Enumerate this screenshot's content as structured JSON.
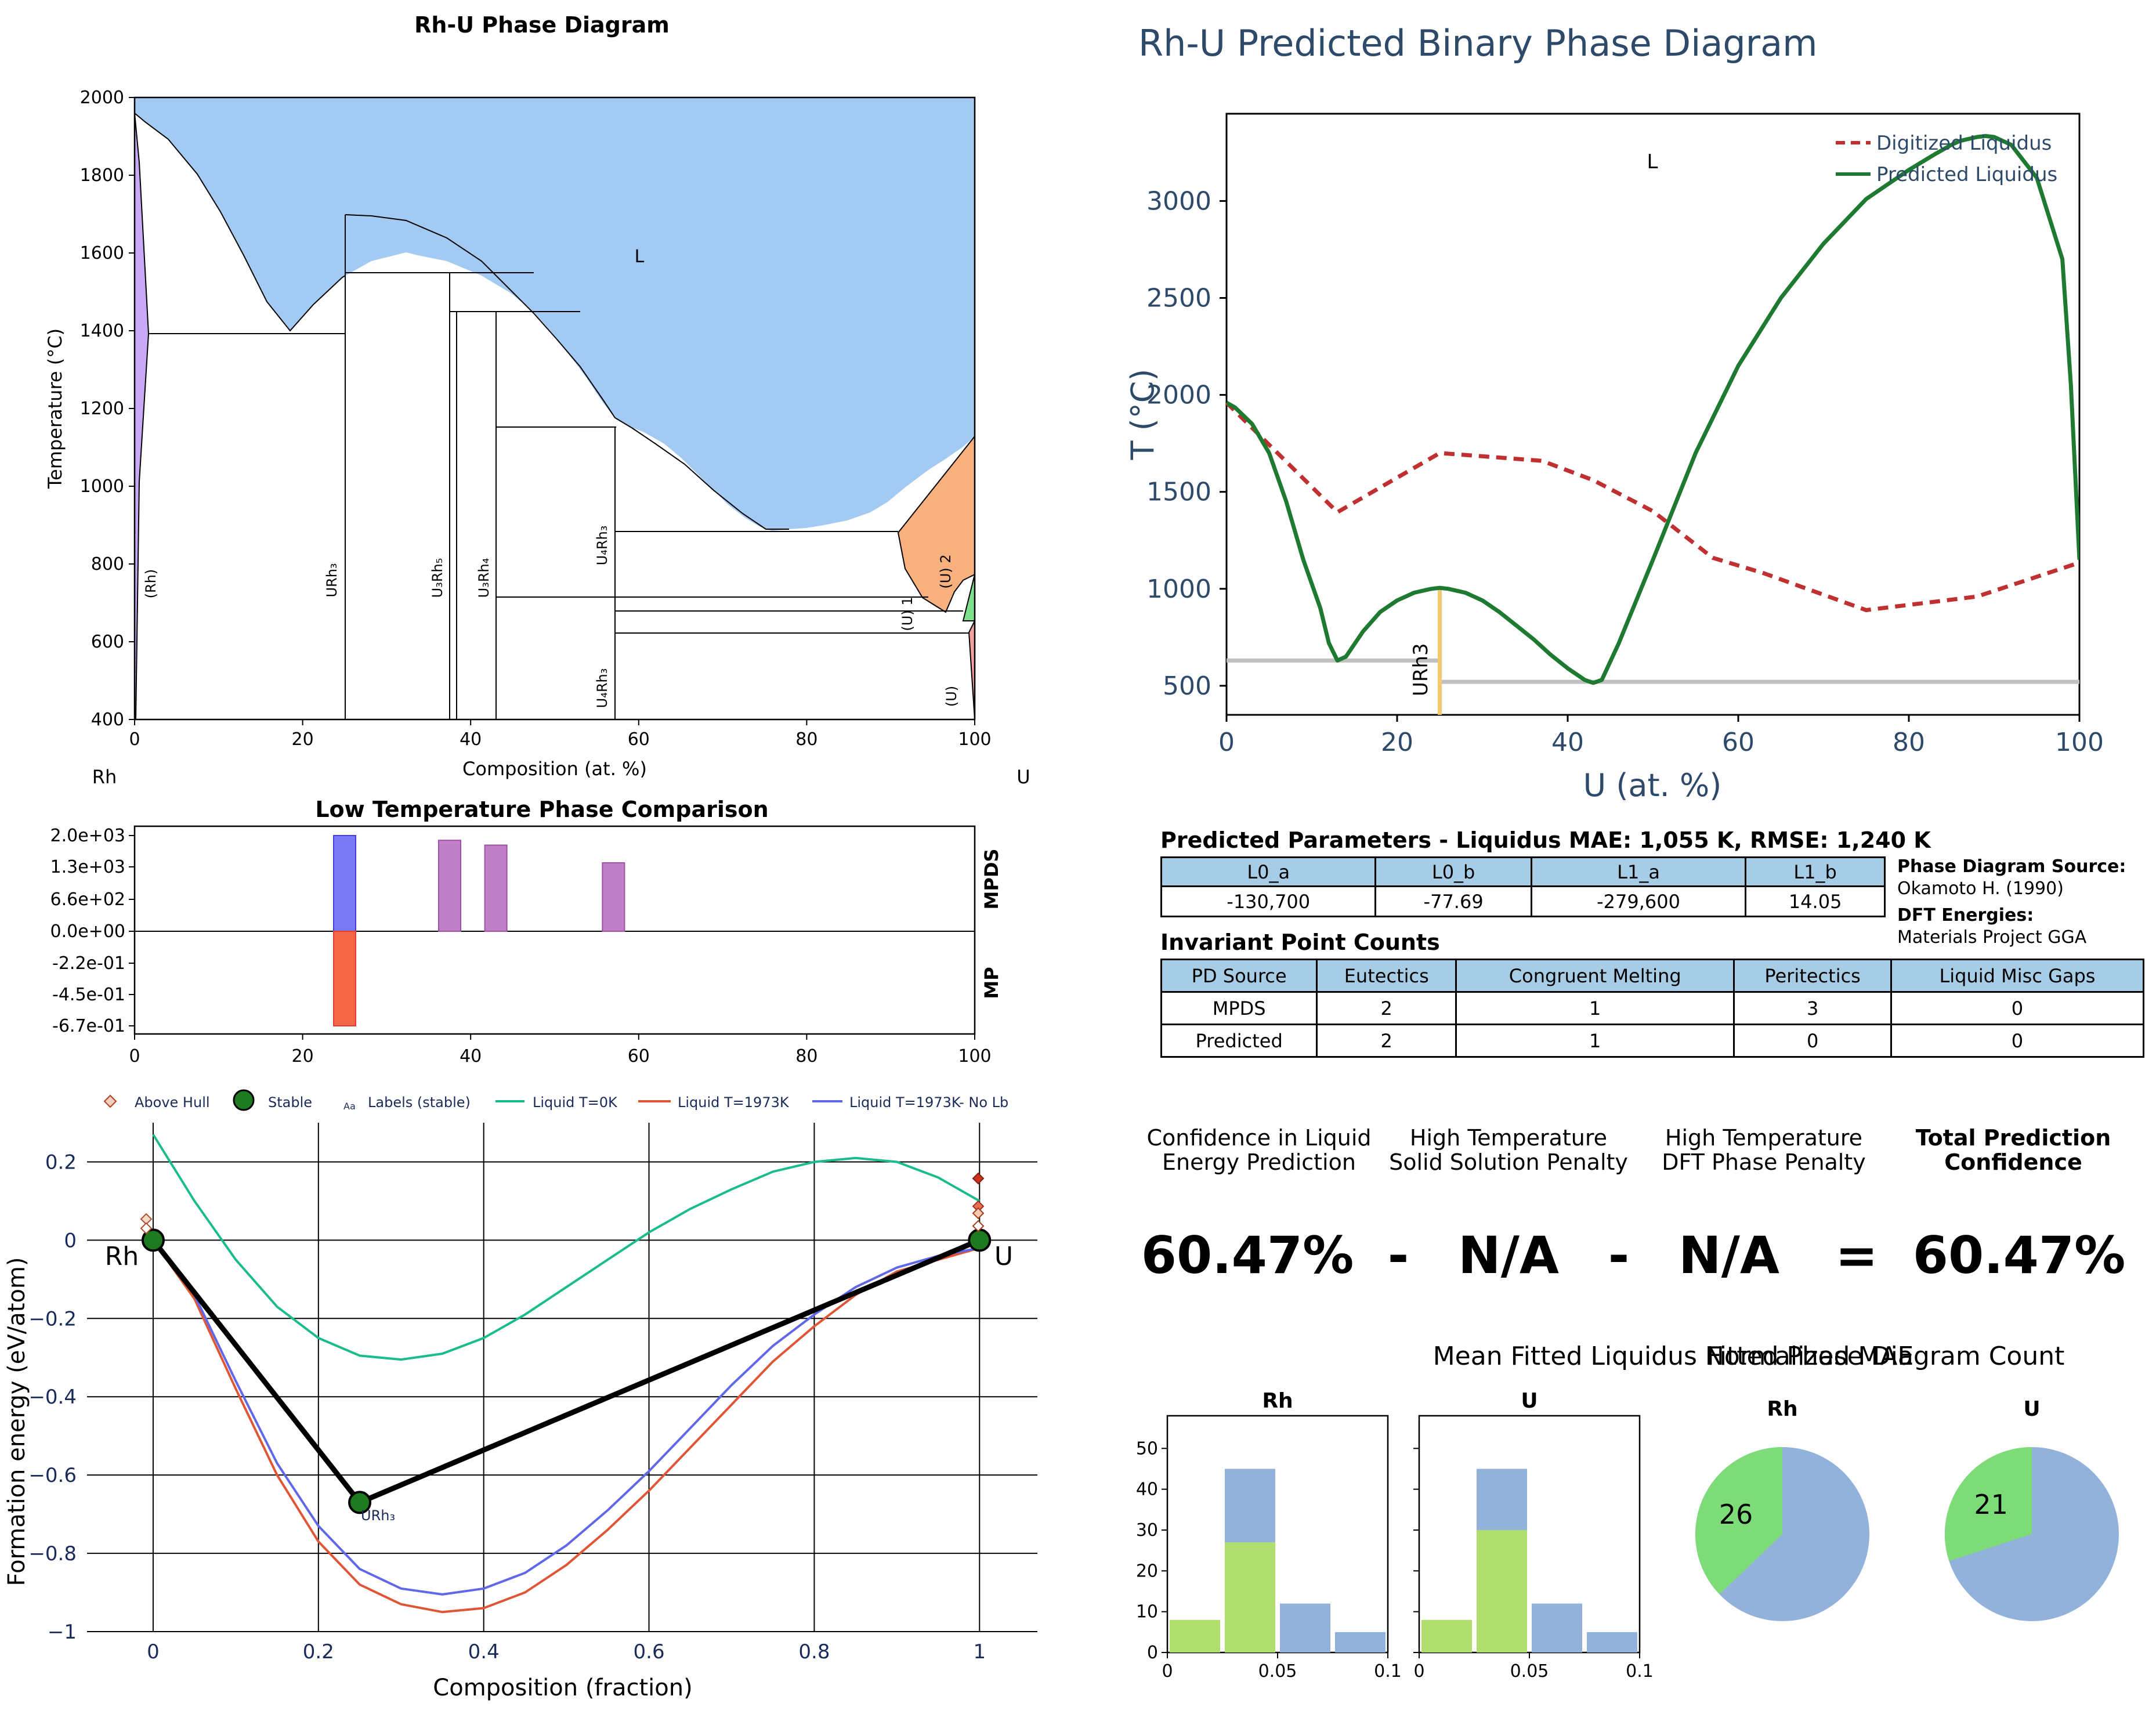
{
  "phase_diagram": {
    "title": "Rh-U Phase Diagram",
    "xlabel": "Composition (at. %)",
    "ylabel": "Temperature (°C)",
    "left_element": "Rh",
    "right_element": "U",
    "liquid_label": "L",
    "phase_labels": [
      "(Rh)",
      "URh₃",
      "U₃Rh₅",
      "U₃Rh₄",
      "U₄Rh₃",
      "U₄Rh₃",
      "(U) 1",
      "(U) 2",
      "(U)"
    ],
    "x_ticks": [
      "0",
      "20",
      "40",
      "60",
      "80",
      "100"
    ],
    "y_ticks": [
      "400",
      "600",
      "800",
      "1000",
      "1200",
      "1400",
      "1600",
      "1800",
      "2000"
    ],
    "colors": {
      "liquid": "#a2caf2",
      "rh_solid": "#c9a8f5",
      "u_orange": "#f8b07e",
      "u_green": "#7de08a",
      "u_red": "#f4a0a0"
    }
  },
  "low_temp": {
    "title": "Low Temperature Phase Comparison",
    "mpds_label": "MPDS",
    "mp_label": "MP",
    "y_ticks": [
      "2.0e+03",
      "1.3e+03",
      "6.6e+02",
      "0.0e+00",
      "-2.2e-01",
      "-4.5e-01",
      "-6.7e-01"
    ],
    "x_ticks": [
      "0",
      "20",
      "40",
      "60",
      "80",
      "100"
    ]
  },
  "hull": {
    "xlabel": "Composition (fraction)",
    "ylabel": "Formation energy (eV/atom)",
    "x_ticks": [
      "0",
      "0.2",
      "0.4",
      "0.6",
      "0.8",
      "1"
    ],
    "y_ticks": [
      "0.2",
      "0",
      "−0.2",
      "−0.4",
      "−0.6",
      "−0.8",
      "−1"
    ],
    "legend": [
      "Above Hull",
      "Stable",
      "Labels (stable)",
      "Liquid T=0K",
      "Liquid T=1973K",
      "Liquid T=1973K- No Lb"
    ],
    "legend_aa": "Aa",
    "point_labels": {
      "rh": "Rh",
      "u": "U",
      "urh3": "URh₃"
    },
    "colors": {
      "t0": "#1abc8c",
      "t1973": "#e05535",
      "nolb": "#6068e8",
      "stable": "#1e7a1e"
    }
  },
  "predicted": {
    "title": "Rh-U Predicted Binary Phase Diagram",
    "xlabel": "U (at. %)",
    "ylabel": "T (°C)",
    "liquid_label": "L",
    "compound_label": "URh3",
    "legend": [
      "Digitized Liquidus",
      "Predicted Liquidus"
    ],
    "x_ticks": [
      "0",
      "20",
      "40",
      "60",
      "80",
      "100"
    ],
    "y_ticks": [
      "500",
      "1000",
      "1500",
      "2000",
      "2500",
      "3000"
    ],
    "colors": {
      "digitized": "#c03030",
      "predicted": "#1e7a30",
      "compound": "#f5c870",
      "invariant": "#c0c0c0",
      "text": "#2e4a6a"
    }
  },
  "chart_data": [
    {
      "type": "bar",
      "title": "Low Temperature Phase Comparison",
      "x": [
        25,
        37.5,
        43,
        57
      ],
      "series": [
        {
          "name": "MPDS",
          "values": [
            2000,
            1900,
            1800,
            1430
          ]
        },
        {
          "name": "MP",
          "values": [
            -0.67,
            null,
            null,
            null
          ]
        }
      ],
      "xlim": [
        0,
        100
      ]
    },
    {
      "type": "line",
      "title": "Rh-U Predicted Binary Phase Diagram",
      "xlabel": "U (at. %)",
      "ylabel": "T (°C)",
      "xlim": [
        0,
        100
      ],
      "ylim": [
        350,
        3450
      ],
      "series": [
        {
          "name": "Digitized Liquidus",
          "x": [
            0,
            13,
            25,
            37,
            43,
            50,
            57,
            63,
            75,
            88,
            100
          ],
          "y": [
            1960,
            1395,
            1700,
            1660,
            1560,
            1400,
            1160,
            1080,
            890,
            960,
            1135
          ]
        },
        {
          "name": "Predicted Liquidus",
          "x": [
            0,
            1,
            3,
            5,
            7,
            9,
            11,
            12,
            13,
            14,
            16,
            18,
            20,
            22,
            24,
            25,
            26,
            28,
            30,
            32,
            34,
            36,
            38,
            40,
            42,
            43,
            44,
            46,
            50,
            55,
            60,
            65,
            70,
            75,
            80,
            83,
            85,
            86,
            88,
            89,
            90,
            92,
            95,
            98,
            99,
            100
          ],
          "y": [
            1960,
            1935,
            1850,
            1700,
            1450,
            1150,
            900,
            720,
            630,
            650,
            780,
            880,
            940,
            980,
            1000,
            1005,
            1000,
            980,
            940,
            880,
            810,
            740,
            660,
            590,
            530,
            515,
            530,
            720,
            1150,
            1700,
            2150,
            2500,
            2780,
            3010,
            3160,
            3240,
            3290,
            3310,
            3330,
            3335,
            3330,
            3290,
            3120,
            2700,
            2050,
            1150
          ]
        },
        {
          "name": "invariant low",
          "x": [
            0,
            25
          ],
          "y": [
            630,
            630
          ]
        },
        {
          "name": "invariant high",
          "x": [
            25,
            100
          ],
          "y": [
            520,
            520
          ]
        }
      ]
    },
    {
      "type": "line",
      "xlabel": "Composition (fraction)",
      "ylabel": "Formation energy (eV/atom)",
      "xlim": [
        -0.08,
        1.07
      ],
      "ylim": [
        -1,
        0.3
      ],
      "series": [
        {
          "name": "Liquid T=0K",
          "x": [
            0,
            0.05,
            0.1,
            0.15,
            0.2,
            0.25,
            0.3,
            0.35,
            0.4,
            0.45,
            0.5,
            0.55,
            0.6,
            0.65,
            0.7,
            0.75,
            0.8,
            0.85,
            0.9,
            0.95,
            1
          ],
          "y": [
            0.27,
            0.1,
            -0.05,
            -0.17,
            -0.25,
            -0.295,
            -0.305,
            -0.29,
            -0.25,
            -0.19,
            -0.12,
            -0.05,
            0.02,
            0.08,
            0.13,
            0.175,
            0.2,
            0.21,
            0.2,
            0.16,
            0.1
          ]
        },
        {
          "name": "Liquid T=1973K",
          "x": [
            0,
            0.05,
            0.1,
            0.15,
            0.2,
            0.25,
            0.3,
            0.35,
            0.4,
            0.45,
            0.5,
            0.55,
            0.6,
            0.65,
            0.7,
            0.75,
            0.8,
            0.85,
            0.9,
            0.95,
            1
          ],
          "y": [
            0,
            -0.15,
            -0.38,
            -0.6,
            -0.77,
            -0.88,
            -0.93,
            -0.95,
            -0.94,
            -0.9,
            -0.83,
            -0.74,
            -0.64,
            -0.53,
            -0.42,
            -0.31,
            -0.22,
            -0.14,
            -0.08,
            -0.05,
            -0.02
          ]
        },
        {
          "name": "Liquid T=1973K- No Lb",
          "x": [
            0,
            0.05,
            0.1,
            0.15,
            0.2,
            0.25,
            0.3,
            0.35,
            0.4,
            0.45,
            0.5,
            0.55,
            0.6,
            0.65,
            0.7,
            0.75,
            0.8,
            0.85,
            0.9,
            0.95,
            1
          ],
          "y": [
            0,
            -0.14,
            -0.36,
            -0.57,
            -0.73,
            -0.84,
            -0.89,
            -0.905,
            -0.89,
            -0.85,
            -0.78,
            -0.69,
            -0.59,
            -0.48,
            -0.37,
            -0.27,
            -0.19,
            -0.12,
            -0.07,
            -0.04,
            -0.02
          ]
        },
        {
          "name": "Hull",
          "x": [
            0,
            0.25,
            1
          ],
          "y": [
            0,
            -0.67,
            0
          ]
        }
      ],
      "points": [
        {
          "label": "Rh",
          "x": 0,
          "y": 0
        },
        {
          "label": "URh₃",
          "x": 0.25,
          "y": -0.67
        },
        {
          "label": "U",
          "x": 1,
          "y": 0
        }
      ]
    },
    {
      "type": "bar",
      "title": "Rh",
      "categories": [
        "0-0.025",
        "0.025-0.05",
        "0.05-0.075",
        "0.075-0.1"
      ],
      "series": [
        {
          "name": "green",
          "values": [
            8,
            27,
            0,
            0
          ]
        },
        {
          "name": "blue",
          "values": [
            0,
            18,
            12,
            5
          ]
        }
      ],
      "ylim": [
        0,
        58
      ]
    },
    {
      "type": "bar",
      "title": "U",
      "categories": [
        "0-0.025",
        "0.025-0.05",
        "0.05-0.075",
        "0.075-0.1"
      ],
      "series": [
        {
          "name": "green",
          "values": [
            8,
            30,
            0,
            0
          ]
        },
        {
          "name": "blue",
          "values": [
            0,
            15,
            12,
            5
          ]
        }
      ],
      "ylim": [
        0,
        58
      ]
    },
    {
      "type": "pie",
      "title": "Rh",
      "values": [
        26,
        44
      ],
      "labels": [
        "26",
        ""
      ]
    },
    {
      "type": "pie",
      "title": "U",
      "values": [
        21,
        49
      ],
      "labels": [
        "21",
        ""
      ]
    }
  ],
  "params": {
    "title": "Predicted Parameters - Liquidus MAE: 1,055 K, RMSE: 1,240 K",
    "headers": [
      "L0_a",
      "L0_b",
      "L1_a",
      "L1_b"
    ],
    "values": [
      "-130,700",
      "-77.69",
      "-279,600",
      "14.05"
    ],
    "source_label": "Phase Diagram Source:",
    "source_value": "Okamoto H. (1990)",
    "dft_label": "DFT Energies:",
    "dft_value": "Materials Project GGA"
  },
  "invariants": {
    "title": "Invariant Point Counts",
    "headers": [
      "PD Source",
      "Eutectics",
      "Congruent Melting",
      "Peritectics",
      "Liquid Misc Gaps"
    ],
    "rows": [
      [
        "MPDS",
        "2",
        "1",
        "3",
        "0"
      ],
      [
        "Predicted",
        "2",
        "1",
        "0",
        "0"
      ]
    ]
  },
  "confidence": {
    "h1": "Confidence in Liquid\nEnergy Prediction",
    "h2": "High Temperature\nSolid Solution Penalty",
    "h3": "High Temperature\nDFT Phase Penalty",
    "h4": "Total Prediction\nConfidence",
    "v1": "60.47%",
    "op1": "-",
    "v2": "N/A",
    "op2": "-",
    "v3": "N/A",
    "op3": "=",
    "v4": "60.47%"
  },
  "mae_hist": {
    "title": "Mean Fitted Liquidus Normalized MAE",
    "rh_label": "Rh",
    "u_label": "U",
    "y_ticks": [
      "0",
      "10",
      "20",
      "30",
      "40",
      "50"
    ],
    "x_ticks": [
      "0",
      "0.05",
      "0.1"
    ],
    "colors": {
      "green": "#b0de6e",
      "blue": "#92b2dc"
    }
  },
  "pies": {
    "title": "Fitted Phase Diagram Count",
    "rh_label": "Rh",
    "u_label": "U",
    "colors": {
      "green": "#7ddc78",
      "blue": "#92b2dc"
    }
  }
}
